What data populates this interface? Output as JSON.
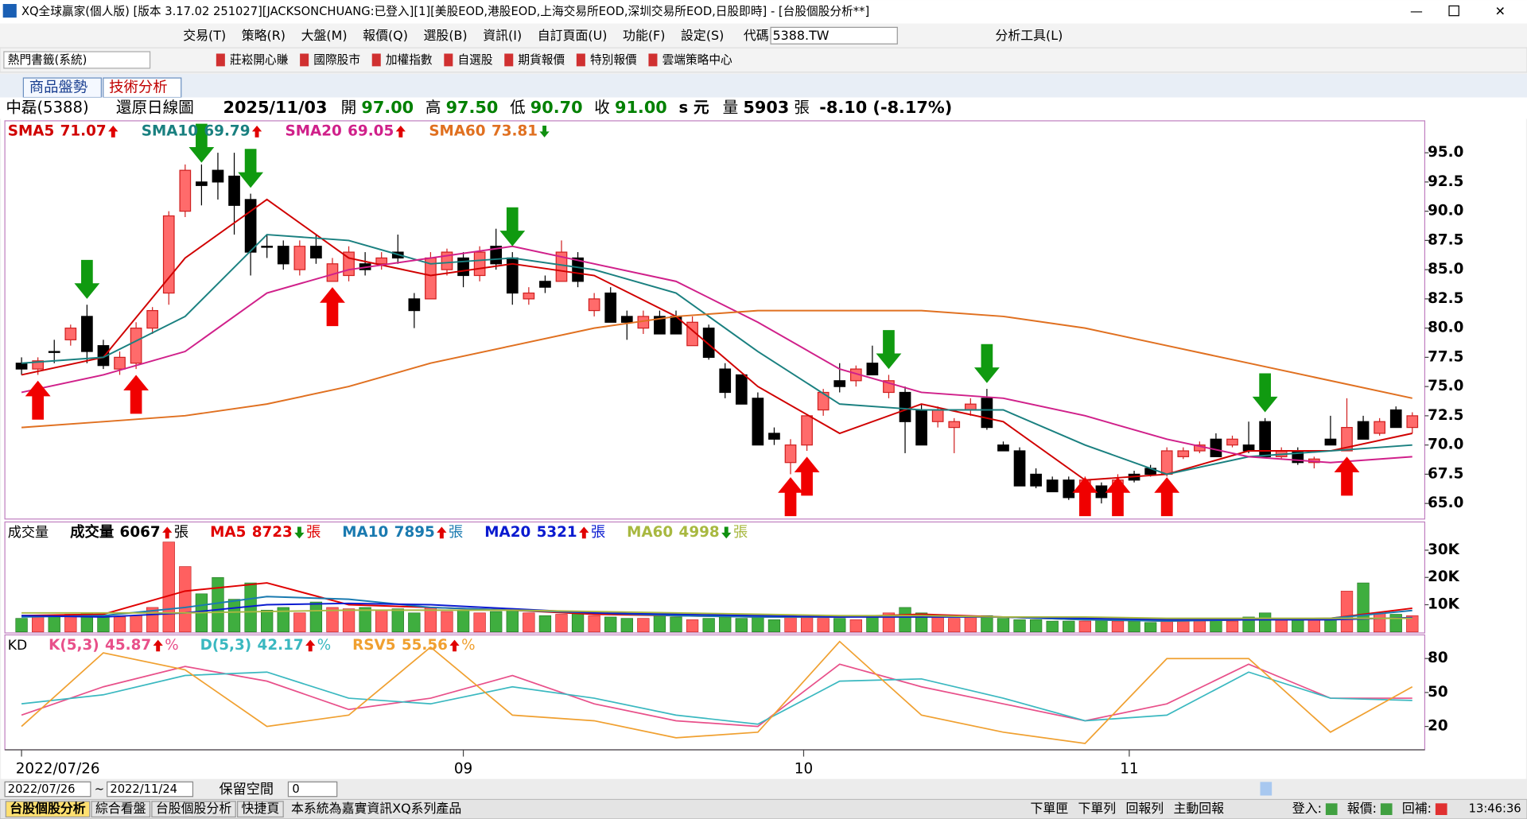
{
  "window": {
    "title": "XQ全球贏家(個人版) [版本 3.17.02 251027][JACKSONCHUANG:已登入][1][美股EOD,港股EOD,上海交易所EOD,深圳交易所EOD,日股即時] - [台股個股分析**]"
  },
  "menu": [
    "交易(T)",
    "策略(R)",
    "大盤(M)",
    "報價(Q)",
    "選股(B)",
    "資訊(I)",
    "自訂頁面(U)",
    "功能(F)",
    "設定(S)"
  ],
  "code_label": "代碼",
  "code": "5388.TW",
  "tools": "分析工具(L)",
  "bookmarks": {
    "selector": "熱門書籤(系統)",
    "items": [
      "莊崧開心賺",
      "國際股市",
      "加權指數",
      "自選股",
      "期貨報價",
      "特別報價",
      "雲端策略中心"
    ]
  },
  "tabs": [
    "商品盤勢",
    "技術分析"
  ],
  "info": {
    "name": "中磊(5388)",
    "mode": "還原日線圖",
    "date": "2025/11/03",
    "fields": [
      {
        "label": "開",
        "value": "97.00"
      },
      {
        "label": "高",
        "value": "97.50"
      },
      {
        "label": "低",
        "value": "90.70"
      },
      {
        "label": "收",
        "value": "91.00"
      }
    ],
    "unit": "s 元",
    "volume_label": "量",
    "volume": "5903",
    "volume_unit": "張",
    "change": "-8.10 (-8.17%)"
  },
  "chart_data": [
    {
      "type": "candlestick",
      "up_color": "#ff6b6b",
      "down_color": "#000000",
      "xlim": [
        -0.9,
        85.7
      ],
      "ylim": [
        63.75,
        97.65
      ],
      "yticks": [
        {
          "value": 95,
          "label": "95.0"
        },
        {
          "value": 92.5,
          "label": "92.5"
        },
        {
          "value": 90,
          "label": "90.0"
        },
        {
          "value": 87.5,
          "label": "87.5"
        },
        {
          "value": 85,
          "label": "85.0"
        },
        {
          "value": 82.5,
          "label": "82.5"
        },
        {
          "value": 80,
          "label": "80.0"
        },
        {
          "value": 77.5,
          "label": "77.5"
        },
        {
          "value": 75,
          "label": "75.0"
        },
        {
          "value": 72.5,
          "label": "72.5"
        },
        {
          "value": 70,
          "label": "70.0"
        },
        {
          "value": 67.5,
          "label": "67.5"
        },
        {
          "value": 65,
          "label": "65.0"
        }
      ],
      "xticks": [
        {
          "value": 0,
          "label": "2022/07/26"
        },
        {
          "value": 27,
          "label": "09"
        },
        {
          "value": 47.8,
          "label": "10"
        },
        {
          "value": 67.7,
          "label": "11"
        }
      ],
      "open": [
        77,
        76.5,
        78,
        79,
        81,
        78.5,
        76.5,
        77,
        80,
        83,
        90,
        92.5,
        93.5,
        93,
        91,
        87,
        87,
        85,
        87,
        84,
        84.5,
        85.5,
        85.5,
        86.5,
        82.5,
        82.5,
        85,
        86,
        84.5,
        87,
        86,
        82.5,
        84,
        84,
        86,
        81.5,
        83,
        81,
        80,
        81,
        81,
        78.5,
        80,
        76.5,
        76,
        74,
        71,
        68.5,
        70,
        73,
        75.5,
        75.5,
        77,
        74.5,
        74.5,
        73,
        72,
        71.5,
        73,
        74,
        70,
        69.5,
        67.5,
        67,
        67,
        66,
        66.5,
        66.5,
        67.5,
        68,
        67.5,
        69,
        69.5,
        70.5,
        70,
        70,
        72,
        69,
        69.5,
        68.5,
        70.5,
        69.5,
        72,
        71,
        73,
        71.5
      ],
      "high": [
        77.5,
        77.5,
        79,
        80.3,
        82,
        79,
        78,
        80.5,
        81.8,
        90,
        94,
        94,
        95,
        95,
        91.5,
        88,
        87.5,
        87.5,
        88,
        86,
        87,
        86.5,
        86.5,
        88,
        83,
        86.5,
        86.8,
        86.5,
        87,
        88.5,
        86.5,
        83.5,
        84.5,
        87.5,
        86.5,
        83,
        83.5,
        81.5,
        81.5,
        81.5,
        81.5,
        81,
        80.3,
        77,
        76,
        74.5,
        71.5,
        70.5,
        72.5,
        74.8,
        77,
        76.8,
        78.5,
        76,
        75,
        73.5,
        73.3,
        72.3,
        74,
        74.8,
        70.3,
        69.8,
        68,
        67.3,
        67.3,
        67.3,
        66.8,
        67.5,
        67.8,
        68.3,
        69.8,
        69.8,
        70.3,
        71,
        70.8,
        72,
        72.3,
        69.8,
        69.8,
        69,
        72.5,
        74,
        72.5,
        72.3,
        73.3,
        72.8
      ],
      "low": [
        76,
        76,
        77,
        78.5,
        77,
        76.5,
        76,
        76.5,
        79.5,
        82,
        89.5,
        90.5,
        91,
        88,
        84.5,
        86,
        85,
        84.5,
        85.5,
        84,
        84,
        84.5,
        85,
        85.5,
        80,
        82.5,
        84.5,
        83.5,
        84,
        85,
        82,
        82,
        83,
        84,
        83.5,
        81,
        80.5,
        79,
        79.5,
        79.5,
        79.5,
        78.5,
        77.3,
        74,
        73.5,
        70,
        70,
        67.5,
        69.5,
        72.5,
        74.5,
        75,
        76,
        74,
        69.3,
        70,
        71.5,
        69.3,
        72.5,
        71.3,
        69.5,
        66.5,
        66.3,
        66,
        65.3,
        65.8,
        65,
        66.3,
        66.8,
        67.3,
        67.3,
        68.8,
        69.3,
        69,
        69.8,
        69.3,
        69,
        68.8,
        68.3,
        68,
        70,
        69.5,
        70.5,
        70.8,
        71.5,
        71
      ],
      "close": [
        76.5,
        77.2,
        78,
        80,
        78,
        76.8,
        77.5,
        80,
        81.5,
        89.6,
        93.5,
        92.2,
        92.5,
        90.5,
        86.5,
        87,
        85.5,
        87,
        86,
        85.5,
        86.5,
        85,
        86,
        86,
        81.5,
        86,
        86.5,
        84.5,
        86.5,
        85.5,
        83,
        83,
        83.5,
        86.5,
        84,
        82.5,
        80.5,
        80.5,
        81,
        79.5,
        79.5,
        80.5,
        77.5,
        74.5,
        73.5,
        70,
        70.5,
        70,
        72.5,
        74.5,
        75,
        76.5,
        76,
        75.5,
        72,
        70,
        73,
        72,
        73.5,
        71.5,
        69.5,
        66.5,
        66.5,
        66,
        65.5,
        67,
        65.5,
        67,
        67,
        67.5,
        69.5,
        69.5,
        70,
        69,
        70.5,
        69.5,
        69,
        69.5,
        68.5,
        68.8,
        70,
        71.5,
        70.5,
        72,
        71.5,
        72.5
      ],
      "line_x": [
        0,
        5,
        10,
        15,
        20,
        25,
        30,
        35,
        40,
        45,
        50,
        55,
        60,
        65,
        70,
        75,
        80,
        85
      ],
      "series": [
        {
          "name": "SMA5",
          "value": 71.07,
          "trend": "up",
          "color": "#d00000",
          "values": [
            76,
            77.5,
            86,
            91,
            86,
            84.5,
            85.5,
            84.5,
            81,
            75,
            71,
            73.5,
            72,
            67,
            67.5,
            69.5,
            69.5,
            71
          ]
        },
        {
          "name": "SMA10",
          "value": 69.79,
          "trend": "up",
          "color": "#1a8080",
          "values": [
            77,
            77.5,
            81,
            88,
            87.5,
            85.5,
            86,
            85,
            83,
            78,
            73.5,
            73,
            73,
            70,
            67.5,
            69,
            69.5,
            70
          ]
        },
        {
          "name": "SMA20",
          "value": 69.05,
          "trend": "up",
          "color": "#d0208a",
          "values": [
            74.5,
            76,
            78,
            83,
            85,
            86,
            87,
            85.5,
            84,
            80.5,
            76.5,
            74.5,
            74,
            72.5,
            70.5,
            69,
            68.5,
            69
          ]
        },
        {
          "name": "SMA60",
          "value": 73.81,
          "trend": "down",
          "color": "#e07020",
          "values": [
            71.5,
            72,
            72.5,
            73.5,
            75,
            77,
            78.5,
            80,
            81,
            81.5,
            81.5,
            81.5,
            81,
            80,
            78.5,
            77,
            75.5,
            74
          ]
        }
      ],
      "signals": {
        "buy": [
          1,
          7,
          19,
          47,
          48,
          65,
          67,
          70,
          81
        ],
        "sell": [
          4,
          11,
          14,
          30,
          53,
          59,
          76
        ]
      }
    },
    {
      "type": "bar",
      "label": "成交量",
      "up_color": "#ff6060",
      "down_color": "#3fae3f",
      "xlim": [
        -0.9,
        85.7
      ],
      "ylim": [
        0,
        40000
      ],
      "yticks": [
        {
          "value": 10000,
          "label": "10K"
        },
        {
          "value": 20000,
          "label": "20K"
        },
        {
          "value": 30000,
          "label": "30K"
        }
      ],
      "values": [
        5000,
        6000,
        5500,
        6500,
        7000,
        6000,
        5500,
        6000,
        9000,
        33000,
        24000,
        14000,
        20000,
        12000,
        18000,
        8000,
        9000,
        7000,
        11000,
        9000,
        8500,
        9000,
        8000,
        8500,
        7000,
        9000,
        7500,
        8000,
        7000,
        7500,
        8000,
        7000,
        6000,
        6500,
        7000,
        6000,
        5500,
        5000,
        5000,
        6000,
        5500,
        4500,
        5000,
        6000,
        5000,
        5500,
        4500,
        6000,
        5500,
        5000,
        5000,
        4500,
        6000,
        7000,
        9000,
        7000,
        5500,
        5000,
        5500,
        6000,
        5000,
        4500,
        4500,
        4000,
        4000,
        4000,
        4500,
        4000,
        4000,
        3500,
        4000,
        4500,
        5000,
        4500,
        4000,
        5500,
        7000,
        4500,
        4500,
        4500,
        5000,
        15000,
        18000,
        7000,
        6500,
        6000
      ],
      "line_x": [
        0,
        5,
        10,
        15,
        20,
        25,
        30,
        35,
        40,
        45,
        50,
        55,
        60,
        65,
        70,
        75,
        80,
        85
      ],
      "series": [
        {
          "name": "成交量",
          "value": 6067,
          "trend": "up",
          "unit": "張",
          "color": "#000000"
        },
        {
          "name": "MA5",
          "value": 8723,
          "trend": "down",
          "unit": "張",
          "color": "#e00000",
          "values": [
            6000,
            6500,
            15000,
            18000,
            10000,
            9000,
            8000,
            6500,
            6000,
            5500,
            5500,
            6500,
            5500,
            4500,
            4000,
            4500,
            5000,
            8700
          ]
        },
        {
          "name": "MA10",
          "value": 7895,
          "trend": "up",
          "unit": "張",
          "color": "#1a7ab0",
          "values": [
            5500,
            6000,
            9000,
            13000,
            12000,
            9000,
            8000,
            7000,
            6000,
            5500,
            5500,
            6000,
            5500,
            4500,
            4000,
            4500,
            5000,
            7900
          ]
        },
        {
          "name": "MA20",
          "value": 5321,
          "trend": "up",
          "unit": "張",
          "color": "#0a1ad0",
          "values": [
            6000,
            5500,
            7000,
            10000,
            10500,
            10000,
            8500,
            7000,
            6500,
            6000,
            5500,
            5500,
            5500,
            5000,
            4500,
            4500,
            4500,
            5300
          ]
        },
        {
          "name": "MA60",
          "value": 4998,
          "trend": "down",
          "unit": "張",
          "color": "#a8b840",
          "values": [
            7000,
            7000,
            7000,
            7500,
            8000,
            8000,
            8000,
            7500,
            7000,
            6500,
            6000,
            6000,
            5500,
            5500,
            5000,
            5000,
            5000,
            5000
          ]
        }
      ]
    },
    {
      "type": "line",
      "label": "KD",
      "xlim": [
        -0.9,
        85.7
      ],
      "ylim": [
        0,
        100
      ],
      "yticks": [
        20,
        50,
        80
      ],
      "x": [
        0,
        5,
        10,
        15,
        20,
        25,
        30,
        35,
        40,
        45,
        50,
        55,
        60,
        65,
        70,
        75,
        80,
        85
      ],
      "series": [
        {
          "name": "K(5,3)",
          "value": 45.87,
          "trend": "up",
          "unit": "%",
          "color": "#e8508a",
          "values": [
            30,
            55,
            73,
            60,
            35,
            45,
            65,
            40,
            25,
            20,
            75,
            55,
            40,
            25,
            40,
            75,
            45,
            45
          ]
        },
        {
          "name": "D(5,3)",
          "value": 42.17,
          "trend": "up",
          "unit": "%",
          "color": "#3ab8c0",
          "values": [
            40,
            48,
            65,
            68,
            45,
            40,
            55,
            45,
            30,
            22,
            60,
            62,
            45,
            25,
            30,
            68,
            45,
            43
          ]
        },
        {
          "name": "RSV5",
          "value": 55.56,
          "trend": "up",
          "unit": "%",
          "color": "#f0a030",
          "values": [
            20,
            85,
            70,
            20,
            30,
            90,
            30,
            25,
            10,
            15,
            95,
            30,
            15,
            5,
            80,
            80,
            15,
            55
          ]
        }
      ]
    }
  ],
  "range": {
    "from": "2022/07/26",
    "sep": "~",
    "to": "2022/11/24",
    "reserve_label": "保留空間",
    "reserve": "0"
  },
  "status": {
    "tabs": [
      "台股個股分析",
      "綜合看盤",
      "台股個股分析",
      "快捷頁"
    ],
    "notice": "本系統為嘉實資訊XQ系列產品",
    "buttons": [
      "下單匣",
      "下單列",
      "回報列",
      "主動回報"
    ],
    "indicators": [
      "登入:",
      "報價:",
      "回補:"
    ],
    "time": "13:46:36"
  }
}
